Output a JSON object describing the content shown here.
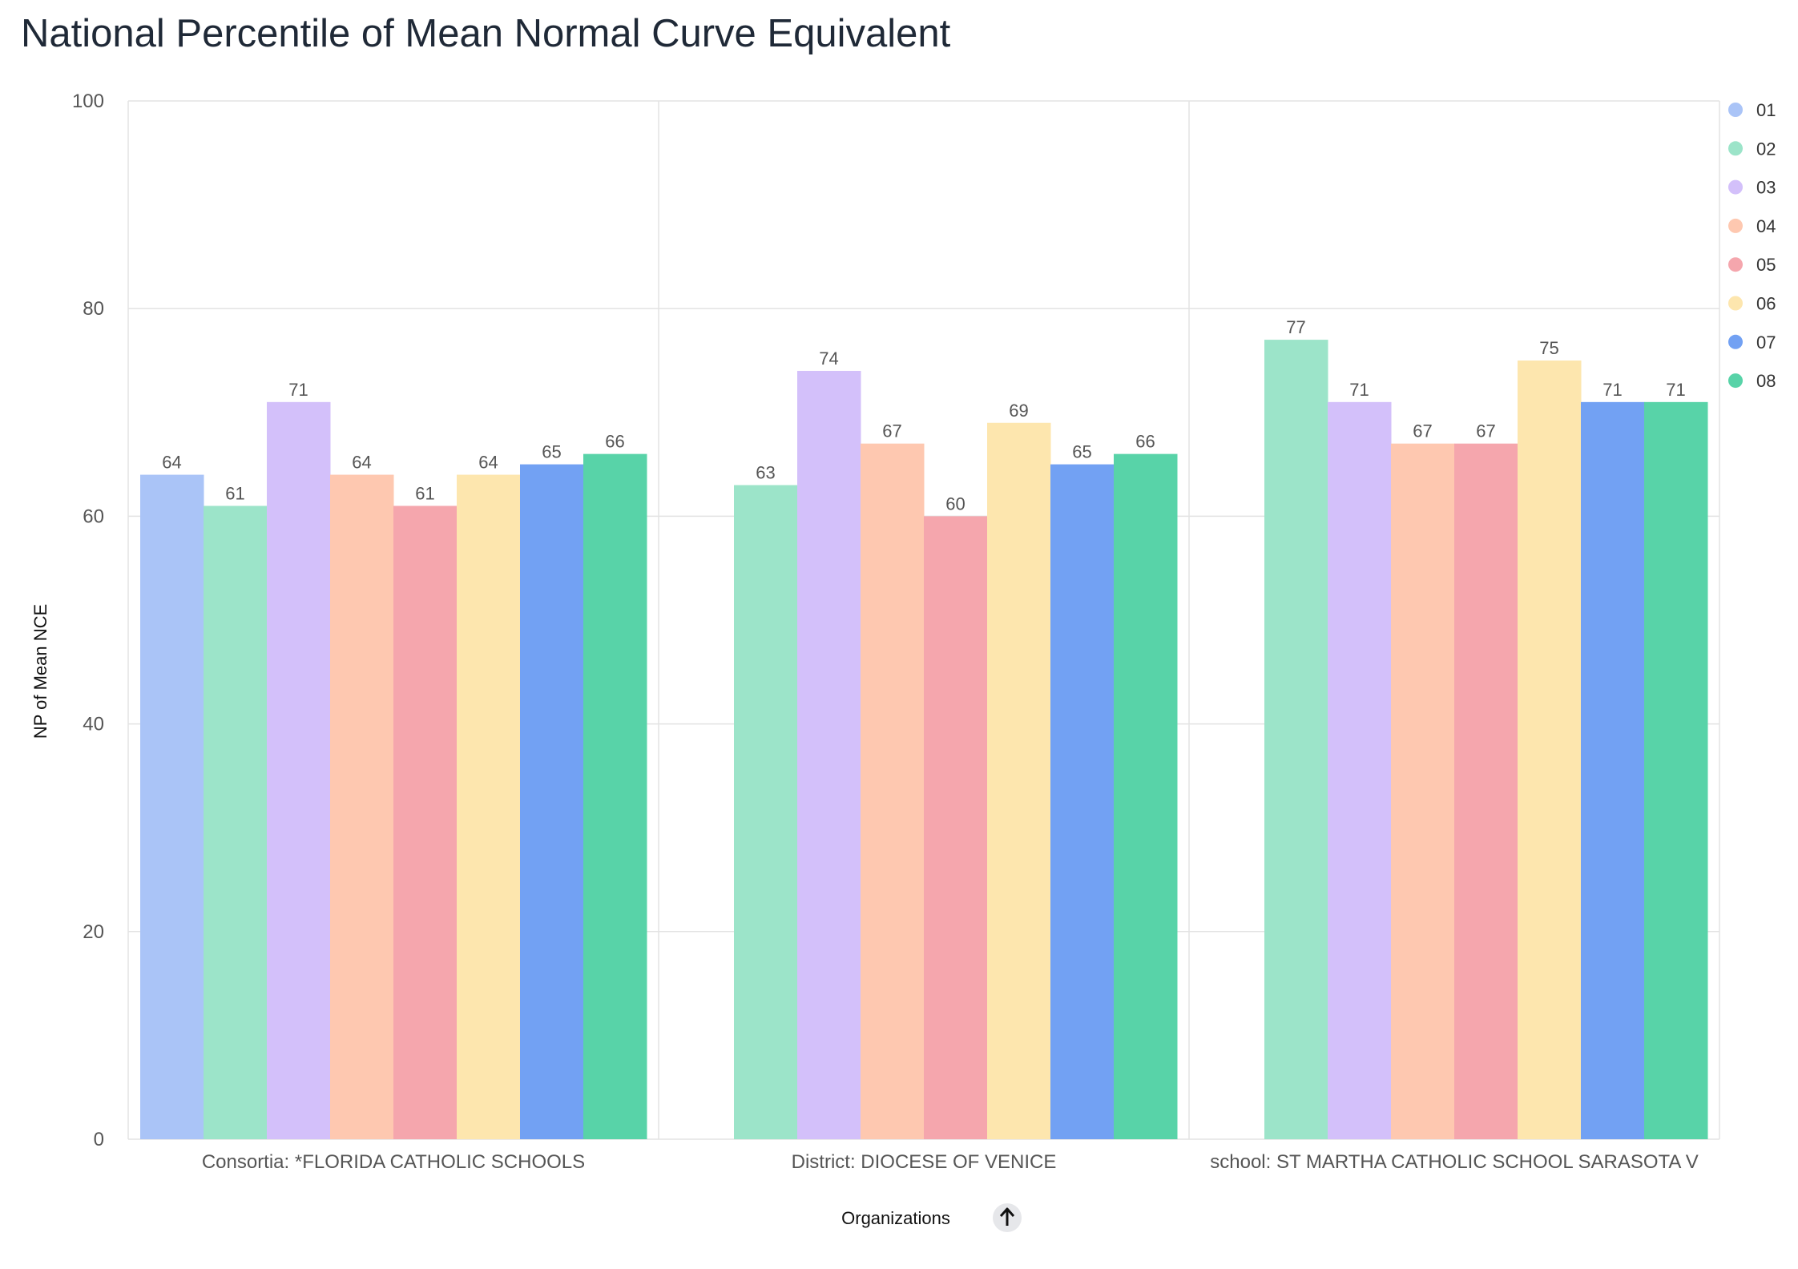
{
  "chart_data": {
    "type": "bar",
    "title": "National Percentile of Mean Normal Curve Equivalent",
    "xlabel": "Organizations",
    "ylabel": "NP of Mean NCE",
    "ylim": [
      0,
      100
    ],
    "yticks": [
      0,
      20,
      40,
      60,
      80,
      100
    ],
    "grid": true,
    "legend_position": "right",
    "sort_icon": "arrow-up-icon",
    "categories": [
      "Consortia: *FLORIDA CATHOLIC SCHOOLS",
      "District: DIOCESE OF VENICE",
      "school: ST MARTHA CATHOLIC SCHOOL SARASOTA V"
    ],
    "series": [
      {
        "name": "01",
        "color": "#aac4f7",
        "values": [
          64,
          null,
          null
        ]
      },
      {
        "name": "02",
        "color": "#9ce4c9",
        "values": [
          61,
          63,
          77
        ]
      },
      {
        "name": "03",
        "color": "#d3c0fa",
        "values": [
          71,
          74,
          71
        ]
      },
      {
        "name": "04",
        "color": "#fec8b0",
        "values": [
          64,
          67,
          67
        ]
      },
      {
        "name": "05",
        "color": "#f5a6ad",
        "values": [
          61,
          60,
          67
        ]
      },
      {
        "name": "06",
        "color": "#fde6ae",
        "values": [
          64,
          69,
          75
        ]
      },
      {
        "name": "07",
        "color": "#72a1f3",
        "values": [
          65,
          65,
          71
        ]
      },
      {
        "name": "08",
        "color": "#58d3a8",
        "values": [
          66,
          66,
          71
        ]
      }
    ]
  }
}
